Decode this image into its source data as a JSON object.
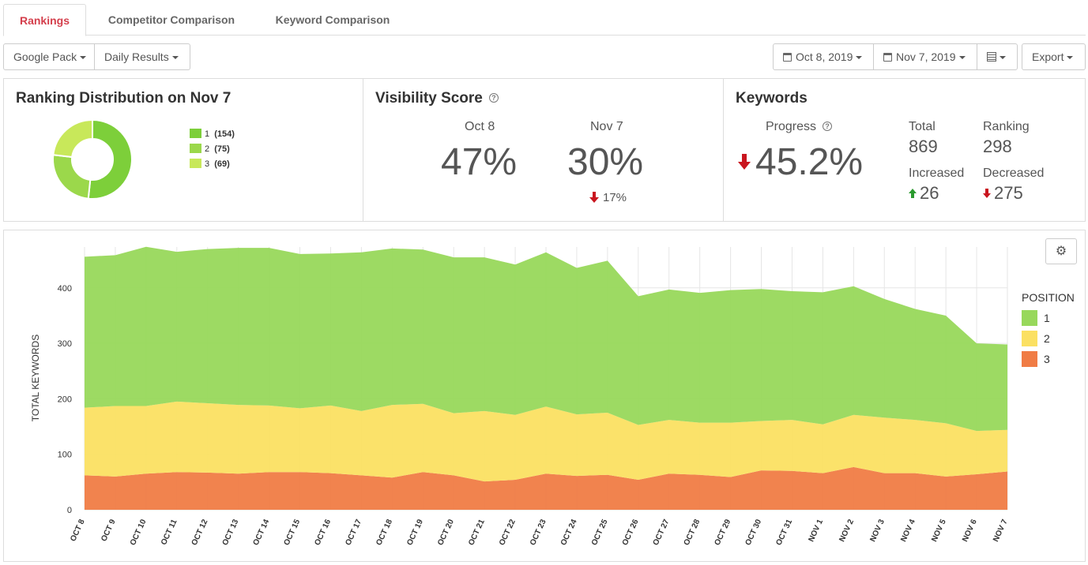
{
  "tabs": [
    "Rankings",
    "Competitor Comparison",
    "Keyword Comparison"
  ],
  "toolbar": {
    "pack": "Google Pack",
    "results": "Daily Results",
    "date_from": "Oct 8, 2019",
    "date_to": "Nov 7, 2019",
    "export": "Export"
  },
  "distribution": {
    "title": "Ranking Distribution on Nov 7",
    "items": [
      {
        "label": "1",
        "count": "(154)",
        "value": 154,
        "color": "#7dcf3a"
      },
      {
        "label": "2",
        "count": "(75)",
        "value": 75,
        "color": "#9bd84b"
      },
      {
        "label": "3",
        "count": "(69)",
        "value": 69,
        "color": "#c8e85a"
      }
    ]
  },
  "visibility": {
    "title": "Visibility Score",
    "help": "?",
    "from_label": "Oct 8",
    "from_value": "47%",
    "to_label": "Nov 7",
    "to_value": "30%",
    "change": "17%"
  },
  "keywords": {
    "title": "Keywords",
    "progress_label": "Progress",
    "help": "?",
    "progress_value": "45.2%",
    "total_label": "Total",
    "total_value": "869",
    "ranking_label": "Ranking",
    "ranking_value": "298",
    "increased_label": "Increased",
    "increased_value": "26",
    "decreased_label": "Decreased",
    "decreased_value": "275"
  },
  "chart_data": {
    "type": "area",
    "stacked": true,
    "ylabel": "TOTAL KEYWORDS",
    "ylim": [
      0,
      470
    ],
    "yticks": [
      0,
      100,
      200,
      300,
      400
    ],
    "categories": [
      "OCT 8",
      "OCT 9",
      "OCT 10",
      "OCT 11",
      "OCT 12",
      "OCT 13",
      "OCT 14",
      "OCT 15",
      "OCT 16",
      "OCT 17",
      "OCT 18",
      "OCT 19",
      "OCT 20",
      "OCT 21",
      "OCT 22",
      "OCT 23",
      "OCT 24",
      "OCT 25",
      "OCT 26",
      "OCT 27",
      "OCT 28",
      "OCT 29",
      "OCT 30",
      "OCT 31",
      "NOV 1",
      "NOV 2",
      "NOV 3",
      "NOV 4",
      "NOV 5",
      "NOV 6",
      "NOV 7"
    ],
    "legend_title": "POSITION",
    "legend_position": "right",
    "series": [
      {
        "name": "3",
        "color": "#f07c45",
        "values": [
          62,
          60,
          65,
          68,
          67,
          65,
          68,
          68,
          66,
          62,
          58,
          68,
          62,
          51,
          54,
          65,
          61,
          63,
          54,
          65,
          63,
          59,
          71,
          70,
          66,
          77,
          66,
          66,
          60,
          64,
          69
        ]
      },
      {
        "name": "2",
        "color": "#fbe062",
        "values": [
          122,
          127,
          122,
          127,
          125,
          124,
          120,
          115,
          122,
          116,
          131,
          123,
          112,
          127,
          117,
          121,
          111,
          112,
          99,
          97,
          94,
          98,
          89,
          92,
          88,
          94,
          100,
          96,
          96,
          78,
          75
        ]
      },
      {
        "name": "1",
        "color": "#98d85b",
        "values": [
          272,
          272,
          287,
          270,
          278,
          283,
          284,
          278,
          274,
          286,
          282,
          278,
          281,
          277,
          271,
          278,
          264,
          274,
          232,
          235,
          234,
          239,
          238,
          232,
          238,
          232,
          214,
          200,
          194,
          158,
          154
        ]
      }
    ]
  }
}
